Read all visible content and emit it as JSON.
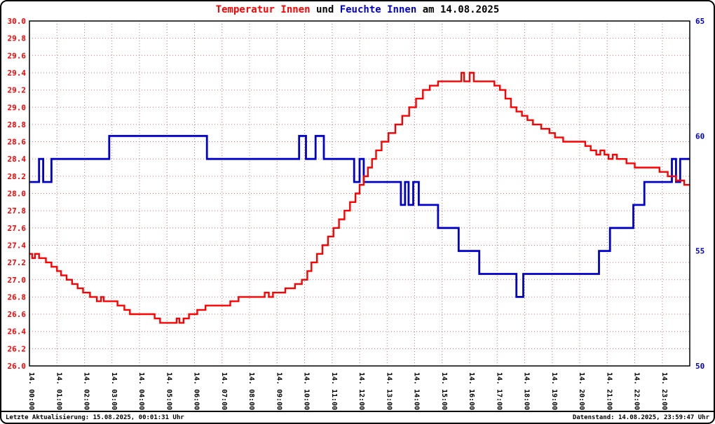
{
  "title": {
    "part1": "Temperatur Innen",
    "part2": " und ",
    "part3": "Feuchte Innen",
    "part4": " am 14.08.2025"
  },
  "footer": {
    "left": "Letzte Aktualisierung: 15.08.2025, 00:01:31 Uhr",
    "right": "Datenstand: 14.08.2025, 23:59:47 Uhr"
  },
  "chart_data": {
    "type": "line",
    "title": "Temperatur Innen und Feuchte Innen am 14.08.2025",
    "grid": {
      "color": "#cc7777",
      "dash": "1 3",
      "on": true
    },
    "x_axis": {
      "range": [
        0,
        24
      ],
      "labels": [
        "14. 00:00",
        "14. 01:00",
        "14. 02:00",
        "14. 03:00",
        "14. 04:00",
        "14. 05:00",
        "14. 06:00",
        "14. 07:00",
        "14. 08:00",
        "14. 09:00",
        "14. 10:00",
        "14. 11:00",
        "14. 12:00",
        "14. 13:00",
        "14. 14:00",
        "14. 15:00",
        "14. 16:00",
        "14. 17:00",
        "14. 18:00",
        "14. 19:00",
        "14. 20:00",
        "14. 21:00",
        "14. 22:00",
        "14. 23:00"
      ]
    },
    "left_axis": {
      "min": 26.0,
      "max": 30.0,
      "step": 0.2,
      "color": "#ff0000"
    },
    "right_axis": {
      "min": 50,
      "max": 65,
      "ticks": [
        50,
        55,
        60,
        65
      ],
      "color": "#0000cc"
    },
    "series": [
      {
        "name": "Temperatur Innen",
        "key": "temperature-innen",
        "axis": "left",
        "color": "#ff0000",
        "width": 2.4,
        "step": true,
        "points": [
          [
            0,
            27.3
          ],
          [
            0.1,
            27.25
          ],
          [
            0.2,
            27.3
          ],
          [
            0.35,
            27.25
          ],
          [
            0.6,
            27.2
          ],
          [
            0.8,
            27.15
          ],
          [
            1.0,
            27.1
          ],
          [
            1.15,
            27.05
          ],
          [
            1.35,
            27.0
          ],
          [
            1.55,
            26.95
          ],
          [
            1.75,
            26.9
          ],
          [
            1.95,
            26.85
          ],
          [
            2.2,
            26.8
          ],
          [
            2.45,
            26.75
          ],
          [
            2.6,
            26.8
          ],
          [
            2.7,
            26.75
          ],
          [
            3.2,
            26.7
          ],
          [
            3.45,
            26.65
          ],
          [
            3.65,
            26.6
          ],
          [
            4.4,
            26.6
          ],
          [
            4.55,
            26.55
          ],
          [
            4.75,
            26.5
          ],
          [
            5.2,
            26.5
          ],
          [
            5.35,
            26.55
          ],
          [
            5.45,
            26.5
          ],
          [
            5.6,
            26.55
          ],
          [
            5.8,
            26.6
          ],
          [
            6.1,
            26.65
          ],
          [
            6.4,
            26.7
          ],
          [
            7.1,
            26.7
          ],
          [
            7.3,
            26.75
          ],
          [
            7.6,
            26.8
          ],
          [
            8.4,
            26.8
          ],
          [
            8.55,
            26.85
          ],
          [
            8.7,
            26.8
          ],
          [
            8.85,
            26.85
          ],
          [
            9.3,
            26.9
          ],
          [
            9.65,
            26.95
          ],
          [
            9.9,
            27.0
          ],
          [
            10.1,
            27.1
          ],
          [
            10.25,
            27.2
          ],
          [
            10.45,
            27.3
          ],
          [
            10.65,
            27.4
          ],
          [
            10.85,
            27.5
          ],
          [
            11.05,
            27.6
          ],
          [
            11.25,
            27.7
          ],
          [
            11.45,
            27.8
          ],
          [
            11.65,
            27.9
          ],
          [
            11.85,
            28.0
          ],
          [
            12.0,
            28.1
          ],
          [
            12.15,
            28.2
          ],
          [
            12.3,
            28.3
          ],
          [
            12.45,
            28.4
          ],
          [
            12.6,
            28.5
          ],
          [
            12.8,
            28.6
          ],
          [
            13.05,
            28.7
          ],
          [
            13.3,
            28.8
          ],
          [
            13.55,
            28.9
          ],
          [
            13.8,
            29.0
          ],
          [
            14.05,
            29.1
          ],
          [
            14.3,
            29.2
          ],
          [
            14.55,
            29.25
          ],
          [
            14.85,
            29.3
          ],
          [
            15.6,
            29.3
          ],
          [
            15.7,
            29.4
          ],
          [
            15.8,
            29.3
          ],
          [
            16.0,
            29.4
          ],
          [
            16.15,
            29.3
          ],
          [
            16.9,
            29.25
          ],
          [
            17.1,
            29.2
          ],
          [
            17.3,
            29.1
          ],
          [
            17.5,
            29.0
          ],
          [
            17.7,
            28.95
          ],
          [
            17.9,
            28.9
          ],
          [
            18.1,
            28.85
          ],
          [
            18.3,
            28.8
          ],
          [
            18.6,
            28.75
          ],
          [
            18.9,
            28.7
          ],
          [
            19.1,
            28.65
          ],
          [
            19.4,
            28.6
          ],
          [
            20.0,
            28.6
          ],
          [
            20.2,
            28.55
          ],
          [
            20.4,
            28.5
          ],
          [
            20.6,
            28.45
          ],
          [
            20.75,
            28.5
          ],
          [
            20.9,
            28.45
          ],
          [
            21.05,
            28.4
          ],
          [
            21.2,
            28.45
          ],
          [
            21.35,
            28.4
          ],
          [
            21.7,
            28.35
          ],
          [
            22.0,
            28.3
          ],
          [
            22.6,
            28.3
          ],
          [
            22.9,
            28.25
          ],
          [
            23.2,
            28.2
          ],
          [
            23.5,
            28.15
          ],
          [
            23.8,
            28.1
          ],
          [
            24,
            28.1
          ]
        ]
      },
      {
        "name": "Feuchte Innen",
        "key": "feuchte-innen",
        "axis": "right",
        "color": "#0000cc",
        "width": 2.8,
        "step": true,
        "points": [
          [
            0,
            58
          ],
          [
            0.35,
            59
          ],
          [
            0.5,
            58
          ],
          [
            0.8,
            59
          ],
          [
            2.9,
            60
          ],
          [
            6.45,
            59
          ],
          [
            9.8,
            60
          ],
          [
            10.05,
            59
          ],
          [
            10.4,
            60
          ],
          [
            10.7,
            59
          ],
          [
            11.8,
            58
          ],
          [
            12.0,
            59
          ],
          [
            12.15,
            58
          ],
          [
            13.5,
            57
          ],
          [
            13.65,
            58
          ],
          [
            13.78,
            57
          ],
          [
            13.95,
            58
          ],
          [
            14.15,
            57
          ],
          [
            14.85,
            56
          ],
          [
            15.6,
            55
          ],
          [
            16.35,
            54
          ],
          [
            17.7,
            53
          ],
          [
            17.95,
            54
          ],
          [
            20.7,
            55
          ],
          [
            21.1,
            56
          ],
          [
            21.95,
            57
          ],
          [
            22.35,
            58
          ],
          [
            23.35,
            59
          ],
          [
            23.5,
            58
          ],
          [
            23.65,
            59
          ],
          [
            24,
            59
          ]
        ]
      }
    ]
  }
}
